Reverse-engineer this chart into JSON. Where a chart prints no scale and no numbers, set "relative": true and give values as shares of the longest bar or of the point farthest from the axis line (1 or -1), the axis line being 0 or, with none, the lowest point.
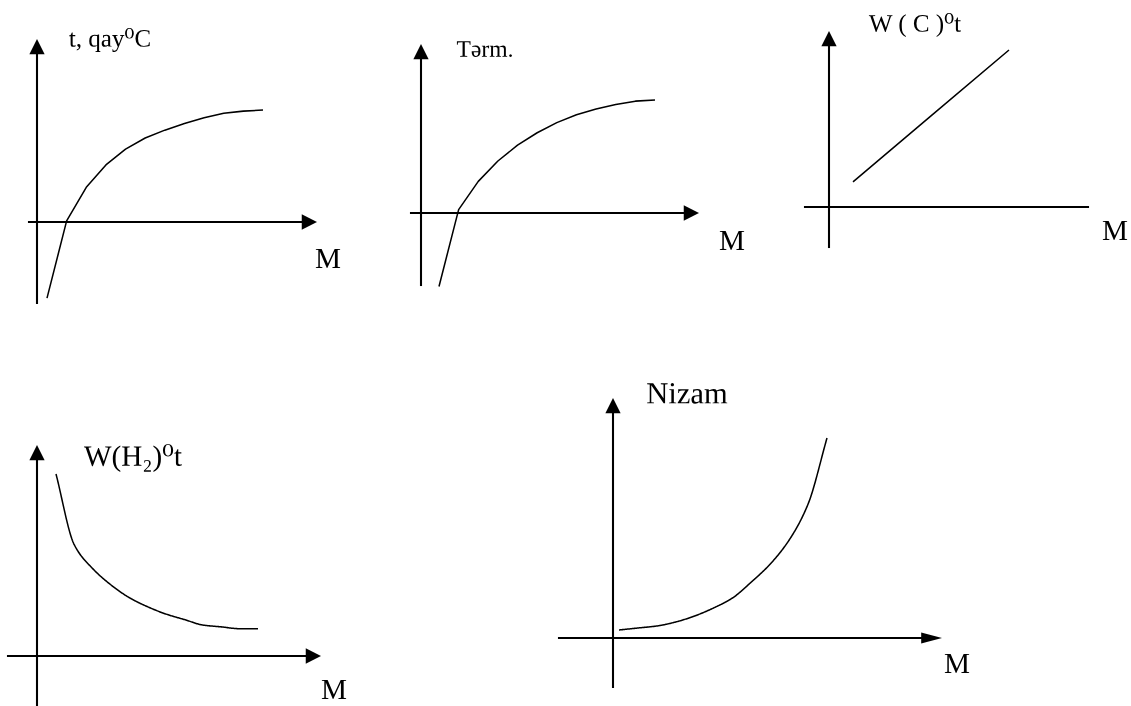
{
  "chart_data": [
    {
      "type": "line",
      "relative": true,
      "ylabel": "t, qay⁰C",
      "xlabel": "M",
      "categories": [
        null,
        null,
        null,
        null,
        null,
        null,
        null,
        null,
        null,
        null,
        null,
        null
      ],
      "series": [
        {
          "color": "#000000",
          "values": [
            -0.68,
            0.01,
            0.31,
            0.51,
            0.65,
            0.75,
            0.82,
            0.88,
            0.93,
            0.97,
            0.99,
            1
          ]
        }
      ]
    },
    {
      "type": "line",
      "relative": true,
      "ylabel": "Tərm.",
      "xlabel": "M",
      "categories": [
        null,
        null,
        null,
        null,
        null,
        null,
        null,
        null,
        null,
        null,
        null,
        null
      ],
      "series": [
        {
          "color": "#000000",
          "values": [
            -0.65,
            0.03,
            0.28,
            0.46,
            0.6,
            0.71,
            0.8,
            0.87,
            0.92,
            0.96,
            0.99,
            1
          ]
        }
      ]
    },
    {
      "type": "line",
      "relative": true,
      "ylabel": "W ( C )⁰t",
      "xlabel": "M",
      "categories": [
        null,
        null,
        null
      ],
      "series": [
        {
          "color": "#000000",
          "values": [
            0.16,
            0.58,
            1
          ]
        }
      ]
    },
    {
      "type": "line",
      "relative": true,
      "ylabel": "W(H₂)⁰t",
      "xlabel": "M",
      "categories": [
        null,
        null,
        null,
        null,
        null,
        null,
        null,
        null,
        null,
        null,
        null,
        null
      ],
      "series": [
        {
          "color": "#000000",
          "values": [
            1,
            0.61,
            0.48,
            0.39,
            0.32,
            0.27,
            0.23,
            0.2,
            0.17,
            0.16,
            0.15,
            0.15
          ]
        }
      ]
    },
    {
      "type": "line",
      "relative": true,
      "ylabel": "Nizam",
      "xlabel": "M",
      "categories": [
        null,
        null,
        null,
        null,
        null,
        null,
        null,
        null,
        null,
        null,
        null,
        null
      ],
      "series": [
        {
          "color": "#000000",
          "values": [
            0.04,
            0.05,
            0.06,
            0.08,
            0.11,
            0.15,
            0.2,
            0.28,
            0.37,
            0.49,
            0.67,
            1
          ]
        }
      ]
    }
  ]
}
